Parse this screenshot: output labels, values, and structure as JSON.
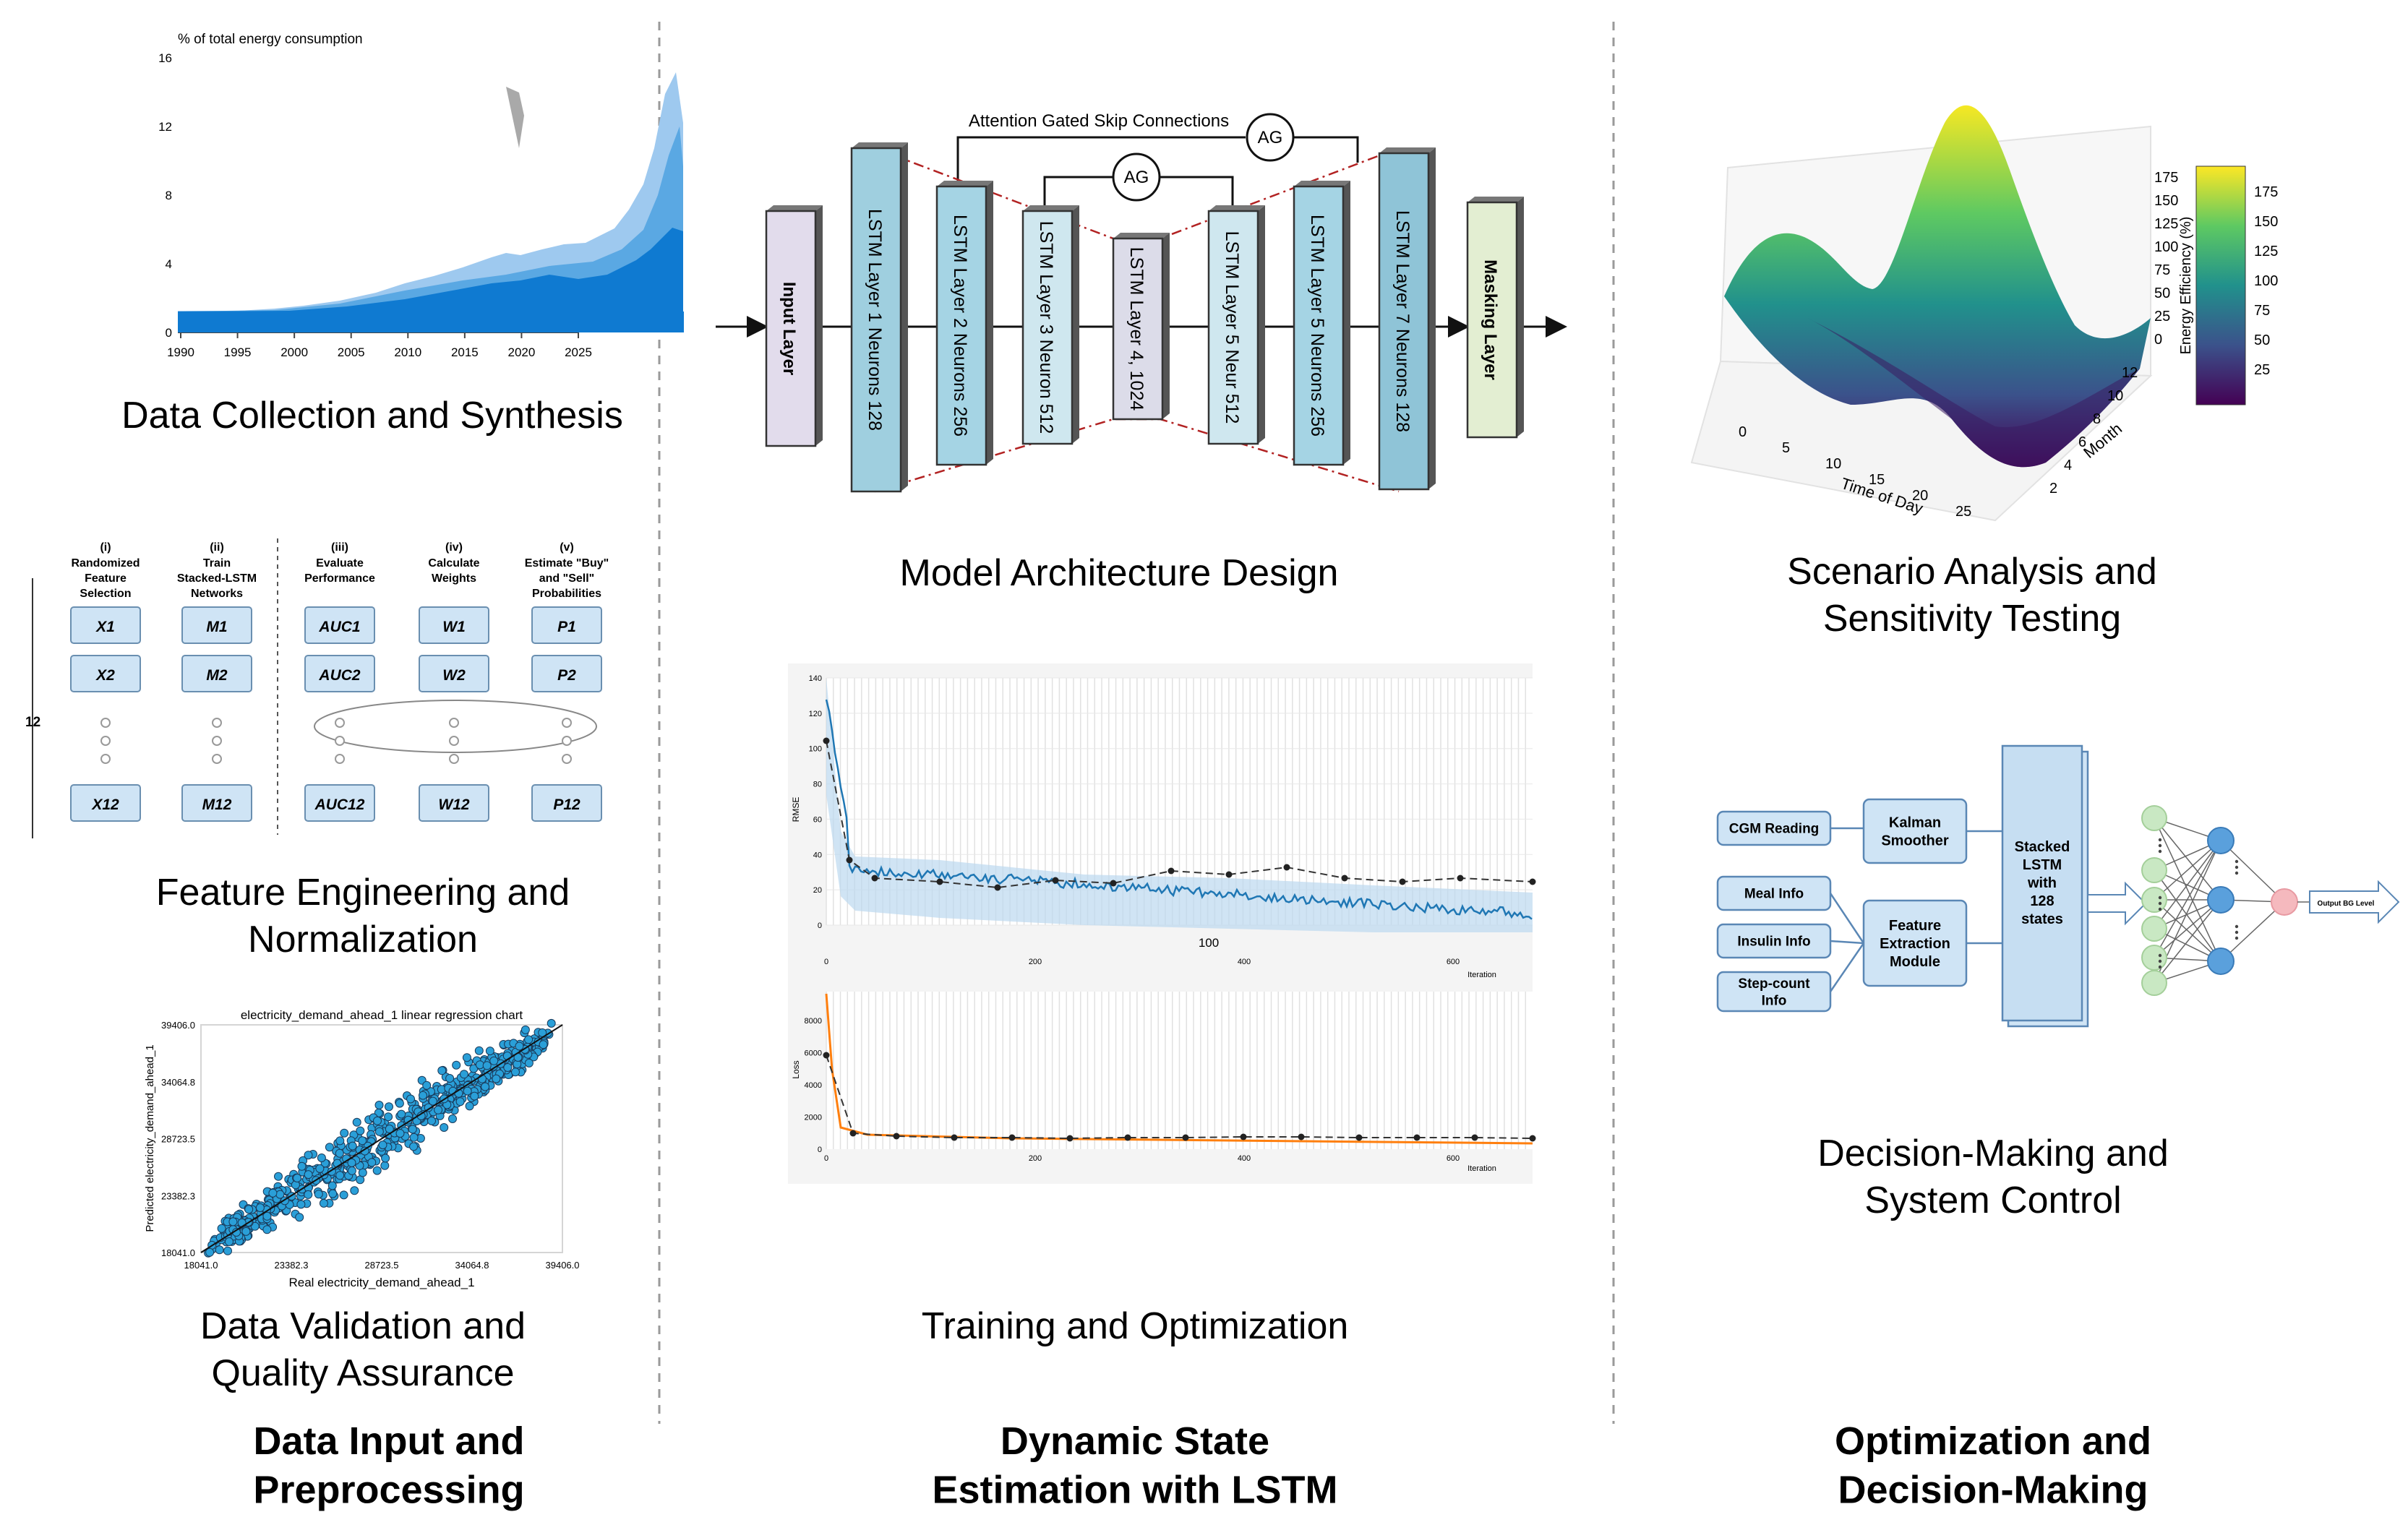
{
  "columns": {
    "left": {
      "footer": [
        "Data Input and",
        "Preprocessing"
      ],
      "captions": {
        "collection": [
          "Data Collection and Synthesis"
        ],
        "feature": [
          "Feature Engineering and",
          "Normalization"
        ],
        "validation": [
          "Data Validation and",
          "Quality Assurance"
        ]
      }
    },
    "middle": {
      "footer": [
        "Dynamic State",
        "Estimation with LSTM"
      ],
      "captions": {
        "architecture": [
          "Model Architecture Design"
        ],
        "training": [
          "Training and Optimization"
        ]
      }
    },
    "right": {
      "footer": [
        "Optimization and",
        "Decision-Making"
      ],
      "captions": {
        "scenario": [
          "Scenario Analysis and",
          "Sensitivity Testing"
        ],
        "decision": [
          "Decision-Making and",
          "System Control"
        ]
      }
    }
  },
  "area_chart": {
    "ylabel": "% of total energy consumption",
    "yticks": [
      "16",
      "12",
      "8",
      "4",
      "0"
    ],
    "xticks": [
      "1990",
      "1995",
      "2000",
      "2005",
      "2010",
      "2015",
      "2020",
      "2025"
    ]
  },
  "feature_grid": {
    "side_label": "12",
    "columns": [
      {
        "num": "(i)",
        "head": [
          "Randomized",
          "Feature",
          "Selection"
        ],
        "items": [
          "X1",
          "X2",
          "X12"
        ]
      },
      {
        "num": "(ii)",
        "head": [
          "Train",
          "Stacked-LSTM",
          "Networks"
        ],
        "items": [
          "M1",
          "M2",
          "M12"
        ]
      },
      {
        "num": "(iii)",
        "head": [
          "Evaluate",
          "Performance"
        ],
        "items": [
          "AUC1",
          "AUC2",
          "AUC12"
        ]
      },
      {
        "num": "(iv)",
        "head": [
          "Calculate",
          "Weights"
        ],
        "items": [
          "W1",
          "W2",
          "W12"
        ]
      },
      {
        "num": "(v)",
        "head": [
          "Estimate \"Buy\"",
          "and \"Sell\"",
          "Probabilities"
        ],
        "items": [
          "P1",
          "P2",
          "P12"
        ]
      }
    ]
  },
  "scatter": {
    "title": "electricity_demand_ahead_1 linear regression chart",
    "xlabel": "Real electricity_demand_ahead_1",
    "ylabel": "Predicted electricity_demand_ahead_1",
    "ticks": [
      "18041.0",
      "23382.3",
      "28723.5",
      "34064.8",
      "39406.0"
    ]
  },
  "architecture": {
    "skip_label": "Attention Gated Skip Connections",
    "ag": "AG",
    "layers": [
      "Input Layer",
      "LSTM Layer 1   Neurons 128",
      "LSTM Layer 2  Neurons 256",
      "LSTM Layer 3  Neuron 512",
      "LSTM Layer 4, 1024",
      "LSTM Layer 5 Neur 512",
      "LSTM Layer 5 Neurons 256",
      "LSTM Layer 7     Neurons 128",
      "Masking Layer"
    ]
  },
  "training": {
    "top_ylabel": "RMSE",
    "top_yticks": [
      "140",
      "120",
      "100",
      "80",
      "60",
      "40",
      "20",
      "0"
    ],
    "mid_label": "100",
    "bottom_ylabel": "Loss",
    "bottom_yticks": [
      "8000",
      "6000",
      "4000",
      "2000",
      "0"
    ],
    "xticks": [
      "0",
      "200",
      "400",
      "600"
    ],
    "xlabel": "Iteration"
  },
  "surface": {
    "colorbar_label": "Energy Efficiency (%)",
    "cb_ticks": [
      "175",
      "150",
      "125",
      "100",
      "75",
      "50",
      "25"
    ],
    "z_ticks": [
      "175",
      "150",
      "125",
      "100",
      "75",
      "50",
      "25",
      "0"
    ],
    "x_label": "Time of Day",
    "x_ticks": [
      "0",
      "5",
      "10",
      "15",
      "20",
      "25"
    ],
    "y_label": "Month",
    "y_ticks": [
      "12",
      "10",
      "8",
      "6",
      "4",
      "2"
    ]
  },
  "decision": {
    "inputs": [
      "CGM Reading",
      "Meal Info",
      "Insulin Info",
      "Step-count Info"
    ],
    "kalman": [
      "Kalman",
      "Smoother"
    ],
    "feature": [
      "Feature",
      "Extraction",
      "Module"
    ],
    "lstm": [
      "Stacked",
      "LSTM",
      "with",
      "128",
      "states"
    ],
    "output": "Output BG Level"
  }
}
